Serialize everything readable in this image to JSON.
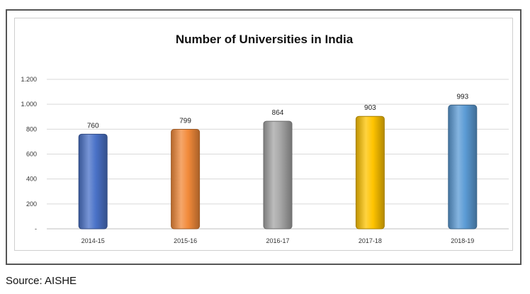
{
  "chart_data": {
    "type": "bar",
    "title": "Number of Universities in India",
    "categories": [
      "2014-15",
      "2015-16",
      "2016-17",
      "2017-18",
      "2018-19"
    ],
    "values": [
      760,
      799,
      864,
      903,
      993
    ],
    "value_labels": [
      "760",
      "799",
      "864",
      "903",
      "993"
    ],
    "bar_colors": [
      "#4a72c8",
      "#f28a3a",
      "#a6a6a6",
      "#ffc400",
      "#5b9bd5"
    ],
    "ylim": [
      0,
      1200
    ],
    "yticks": [
      0,
      200,
      400,
      600,
      800,
      1000,
      1200
    ],
    "ytick_labels": [
      "-",
      "200",
      "400",
      "600",
      "800",
      "1.000",
      "1.200"
    ],
    "xlabel": "",
    "ylabel": "",
    "grid": true,
    "legend": "none"
  },
  "footer": {
    "source": "Source: AISHE"
  }
}
